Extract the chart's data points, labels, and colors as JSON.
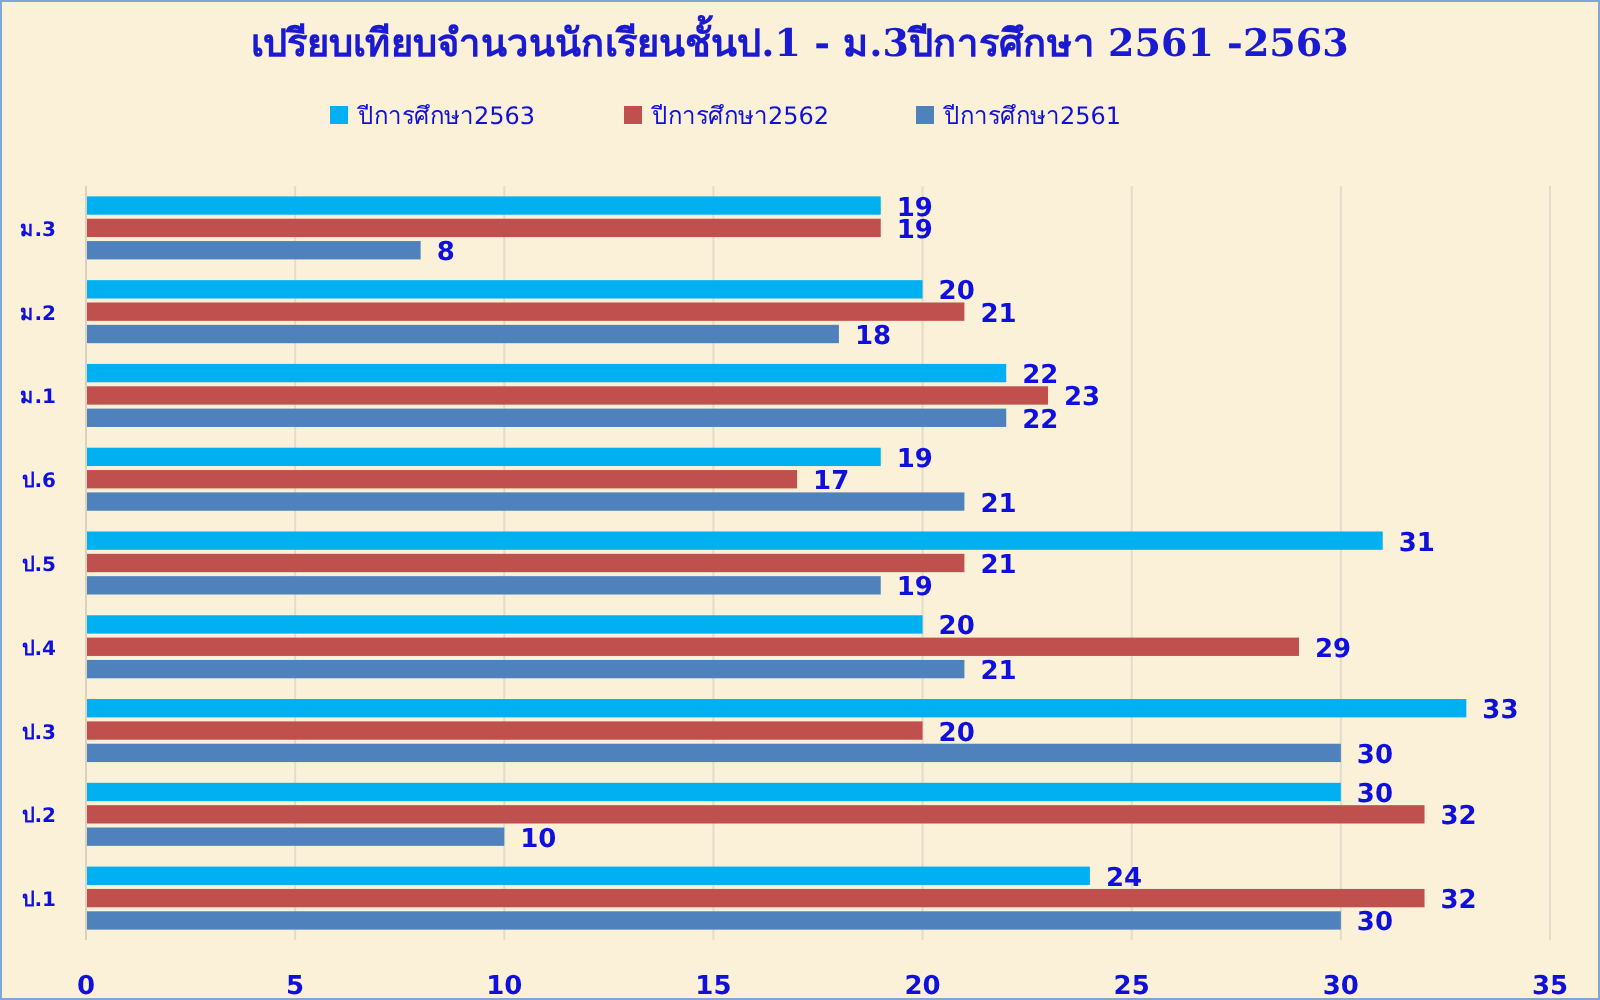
{
  "chart_data": {
    "type": "bar",
    "orientation": "horizontal",
    "title": "เปรียบเทียบจำนวนนักเรียนชั้นป.1 - ม.3ปีการศึกษา 2561 -2563",
    "categories": [
      "ม.3",
      "ม.2",
      "ม.1",
      "ป.6",
      "ป.5",
      "ป.4",
      "ป.3",
      "ป.2",
      "ป.1"
    ],
    "series": [
      {
        "name": "ปีการศึกษา2563",
        "color": "#00b0f0",
        "values": [
          19,
          20,
          22,
          19,
          31,
          20,
          33,
          30,
          24
        ]
      },
      {
        "name": "ปีการศึกษา2562",
        "color": "#c0504d",
        "values": [
          19,
          21,
          23,
          17,
          21,
          29,
          20,
          32,
          32
        ]
      },
      {
        "name": "ปีการศึกษา2561",
        "color": "#4f81bd",
        "values": [
          8,
          18,
          22,
          21,
          19,
          21,
          30,
          10,
          30
        ]
      }
    ],
    "xlim": [
      0,
      35
    ],
    "xticks": [
      0,
      5,
      10,
      15,
      20,
      25,
      30,
      35
    ],
    "grid": "x",
    "legend": "top",
    "data_labels": true
  }
}
